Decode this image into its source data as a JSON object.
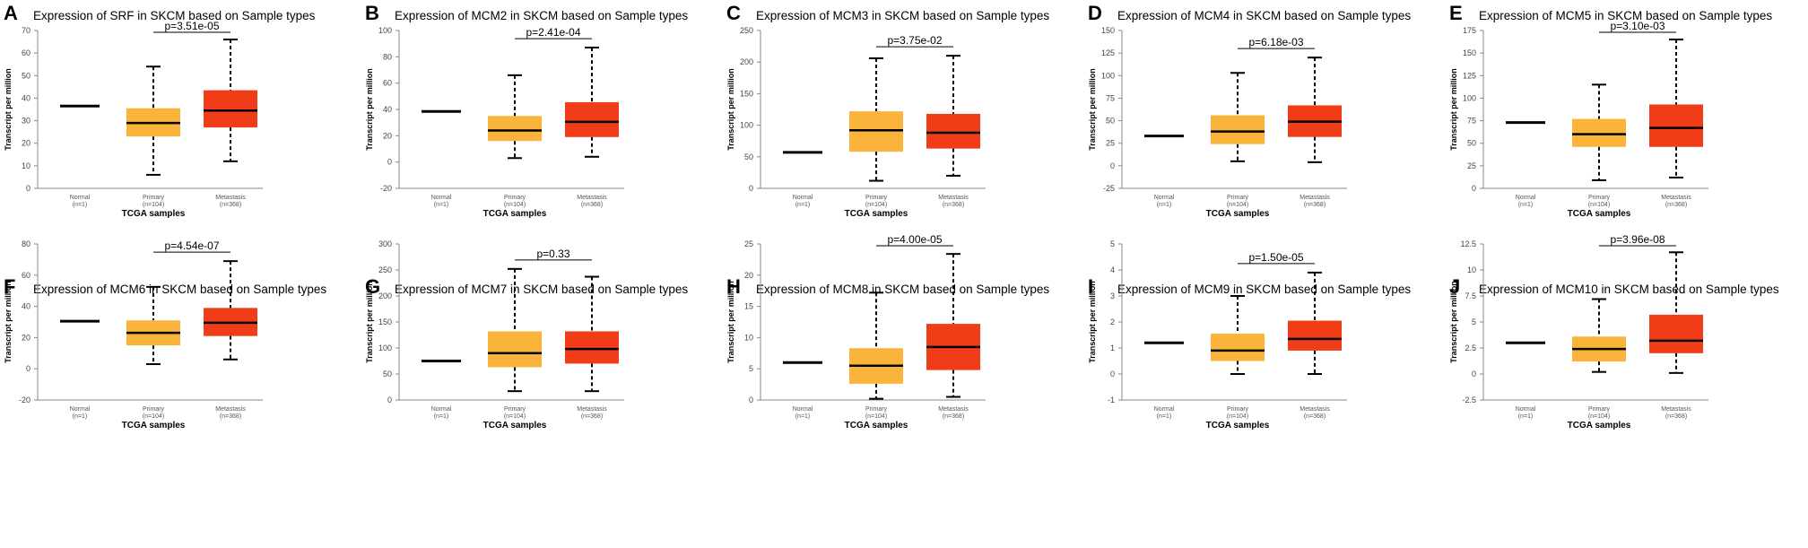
{
  "figure": {
    "xlabel": "TCGA samples",
    "ylabel": "Transcript per million",
    "groups": [
      {
        "name": "Normal",
        "n": "(n=1)"
      },
      {
        "name": "Primary",
        "n": "(n=104)"
      },
      {
        "name": "Metastasis",
        "n": "(n=368)"
      }
    ],
    "colors": {
      "normal": "#000000",
      "primary": "#FBB43B",
      "metastasis": "#F03C17",
      "whisker": "#000000"
    }
  },
  "chart_data": [
    {
      "type": "box",
      "panel": "A",
      "title": "Expression of SRF in SKCM based on Sample types",
      "pvalue": "p=3.51e-05",
      "ylim": [
        0,
        70
      ],
      "yticks": [
        "0",
        "10",
        "20",
        "30",
        "40",
        "50",
        "60",
        "70"
      ],
      "normal": 36.5,
      "primary": {
        "min": 6,
        "q1": 23,
        "median": 29,
        "q3": 35.5,
        "max": 54
      },
      "metastasis": {
        "min": 12,
        "q1": 27,
        "median": 34.5,
        "q3": 43.5,
        "max": 66
      }
    },
    {
      "type": "box",
      "panel": "B",
      "title": "Expression of MCM2 in SKCM based on Sample types",
      "pvalue": "p=2.41e-04",
      "ylim": [
        -20,
        100
      ],
      "yticks": [
        "-20",
        "0",
        "20",
        "40",
        "60",
        "80",
        "100"
      ],
      "normal": 38.5,
      "primary": {
        "min": 3,
        "q1": 16,
        "median": 24,
        "q3": 35,
        "max": 66
      },
      "metastasis": {
        "min": 4,
        "q1": 19,
        "median": 30.5,
        "q3": 45.5,
        "max": 87
      }
    },
    {
      "type": "box",
      "panel": "C",
      "title": "Expression of MCM3 in SKCM based on Sample types",
      "pvalue": "p=3.75e-02",
      "ylim": [
        0,
        250
      ],
      "yticks": [
        "0",
        "50",
        "100",
        "150",
        "200",
        "250"
      ],
      "normal": 57,
      "primary": {
        "min": 12,
        "q1": 58,
        "median": 92,
        "q3": 122,
        "max": 206
      },
      "metastasis": {
        "min": 20,
        "q1": 63,
        "median": 88,
        "q3": 118,
        "max": 210
      }
    },
    {
      "type": "box",
      "panel": "D",
      "title": "Expression of MCM4 in SKCM based on Sample types",
      "pvalue": "p=6.18e-03",
      "ylim": [
        -25,
        150
      ],
      "yticks": [
        "-25",
        "0",
        "25",
        "50",
        "75",
        "100",
        "125",
        "150"
      ],
      "normal": 33,
      "primary": {
        "min": 5,
        "q1": 24,
        "median": 38,
        "q3": 56,
        "max": 103
      },
      "metastasis": {
        "min": 4,
        "q1": 32,
        "median": 49,
        "q3": 67,
        "max": 120
      }
    },
    {
      "type": "box",
      "panel": "E",
      "title": "Expression of MCM5 in SKCM based on Sample types",
      "pvalue": "p=3.10e-03",
      "ylim": [
        0,
        175
      ],
      "yticks": [
        "0",
        "25",
        "50",
        "75",
        "100",
        "125",
        "150",
        "175"
      ],
      "normal": 73,
      "primary": {
        "min": 9,
        "q1": 46,
        "median": 60,
        "q3": 77,
        "max": 115
      },
      "metastasis": {
        "min": 12,
        "q1": 46,
        "median": 67,
        "q3": 93,
        "max": 165
      }
    },
    {
      "type": "box",
      "panel": "F",
      "title": "Expression of MCM6 in SKCM based on Sample types",
      "pvalue": "p=4.54e-07",
      "ylim": [
        -20,
        80
      ],
      "yticks": [
        "-20",
        "0",
        "20",
        "40",
        "60",
        "80"
      ],
      "normal": 30.5,
      "primary": {
        "min": 3,
        "q1": 15,
        "median": 23,
        "q3": 31,
        "max": 52.5
      },
      "metastasis": {
        "min": 6,
        "q1": 21,
        "median": 29.5,
        "q3": 39,
        "max": 69
      }
    },
    {
      "type": "box",
      "panel": "G",
      "title": "Expression of MCM7 in SKCM based on Sample types",
      "pvalue": "p=0.33",
      "ylim": [
        0,
        300
      ],
      "yticks": [
        "0",
        "50",
        "100",
        "150",
        "200",
        "250",
        "300"
      ],
      "normal": 75,
      "primary": {
        "min": 17,
        "q1": 63,
        "median": 90,
        "q3": 132,
        "max": 252
      },
      "metastasis": {
        "min": 17,
        "q1": 70,
        "median": 98,
        "q3": 132,
        "max": 237
      }
    },
    {
      "type": "box",
      "panel": "H",
      "title": "Expression of MCM8 in SKCM based on Sample types",
      "pvalue": "p=4.00e-05",
      "ylim": [
        0,
        25
      ],
      "yticks": [
        "0",
        "5",
        "10",
        "15",
        "20",
        "25"
      ],
      "normal": 6,
      "primary": {
        "min": 0.2,
        "q1": 2.6,
        "median": 5.5,
        "q3": 8.3,
        "max": 17.2
      },
      "metastasis": {
        "min": 0.5,
        "q1": 4.8,
        "median": 8.5,
        "q3": 12.2,
        "max": 23.4
      }
    },
    {
      "type": "box",
      "panel": "I",
      "title": "Expression of MCM9 in SKCM based on Sample types",
      "pvalue": "p=1.50e-05",
      "ylim": [
        -1,
        5
      ],
      "yticks": [
        "-1",
        "0",
        "1",
        "2",
        "3",
        "4",
        "5"
      ],
      "normal": 1.2,
      "primary": {
        "min": 0,
        "q1": 0.5,
        "median": 0.9,
        "q3": 1.55,
        "max": 3
      },
      "metastasis": {
        "min": 0,
        "q1": 0.9,
        "median": 1.35,
        "q3": 2.05,
        "max": 3.9
      }
    },
    {
      "type": "box",
      "panel": "J",
      "title": "Expression of MCM10 in SKCM based on Sample types",
      "pvalue": "p=3.96e-08",
      "ylim": [
        -2.5,
        12.5
      ],
      "yticks": [
        "-2.5",
        "0",
        "2.5",
        "5",
        "7.5",
        "10",
        "12.5"
      ],
      "normal": 3,
      "primary": {
        "min": 0.2,
        "q1": 1.2,
        "median": 2.4,
        "q3": 3.6,
        "max": 7.2
      },
      "metastasis": {
        "min": 0.1,
        "q1": 2,
        "median": 3.2,
        "q3": 5.7,
        "max": 11.7
      }
    }
  ]
}
